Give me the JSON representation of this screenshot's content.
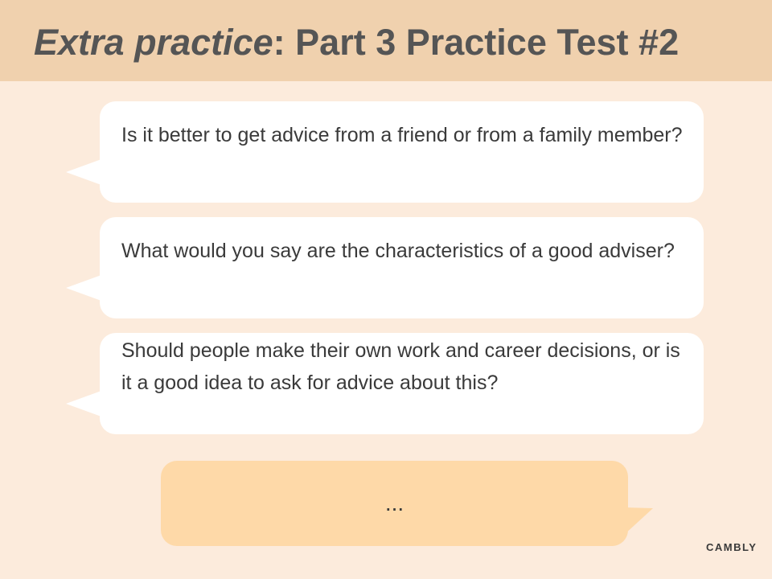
{
  "header": {
    "title_italic": "Extra practice",
    "title_rest": ": Part 3 Practice Test #2"
  },
  "questions": [
    {
      "text": "Is it better to get advice from a friend or from a family member?"
    },
    {
      "text": "What would you say are the characteristics of a good adviser?"
    },
    {
      "text": "Should people make their own work and career decisions, or is it a good idea to ask for advice about this?"
    }
  ],
  "answer": {
    "text": "..."
  },
  "branding": {
    "logo_text": "CAMBLY"
  },
  "colors": {
    "background": "#fcebdc",
    "header_band": "#f0d1ae",
    "question_bubble": "#ffffff",
    "answer_bubble": "#fed9a8",
    "title_text": "#555555"
  }
}
